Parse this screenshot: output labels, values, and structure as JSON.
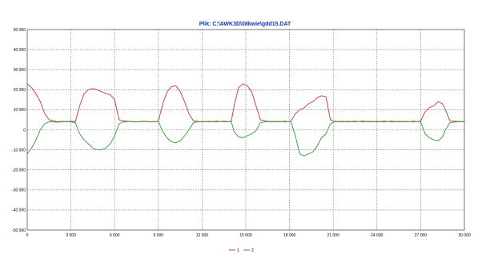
{
  "chart_data": {
    "type": "line",
    "title": "Plik: C:\\AWK3D\\08kwie\\gdd15.DAT",
    "xlabel": "",
    "ylabel": "",
    "xlim": [
      0,
      30000
    ],
    "ylim": [
      -50000,
      50000
    ],
    "x_ticks": [
      "0",
      "3 000",
      "6 000",
      "9 000",
      "12 000",
      "15 000",
      "18 000",
      "21 000",
      "24 000",
      "27 000",
      "30 000"
    ],
    "y_ticks": [
      "50 000",
      "40 000",
      "30 000",
      "20 000",
      "10 000",
      "0",
      "-10 000",
      "-20 000",
      "-30 000",
      "-40 000",
      "-50 000"
    ],
    "grid": true,
    "legend_position": "bottom-center",
    "series": [
      {
        "name": "1",
        "color": "#cc3333",
        "x": [
          0,
          300,
          600,
          900,
          1200,
          1500,
          1800,
          2100,
          2400,
          2700,
          3000,
          3300,
          3600,
          3900,
          4200,
          4500,
          4800,
          5100,
          5400,
          5700,
          6000,
          6300,
          6600,
          7000,
          7500,
          8000,
          8500,
          9000,
          9300,
          9600,
          9900,
          10200,
          10500,
          10800,
          11100,
          11400,
          11700,
          12000,
          12500,
          13000,
          13500,
          14000,
          14200,
          14500,
          14800,
          15100,
          15400,
          15700,
          16000,
          16300,
          16700,
          17200,
          17700,
          18100,
          18400,
          18700,
          19000,
          19300,
          19600,
          19900,
          20200,
          20500,
          20800,
          21100,
          21500,
          22000,
          22500,
          23000,
          23500,
          24000,
          24500,
          25000,
          25500,
          26000,
          26500,
          27000,
          27300,
          27600,
          27900,
          28200,
          28500,
          28700,
          29000,
          29500,
          30000
        ],
        "y": [
          23000,
          21000,
          18000,
          14000,
          8000,
          5000,
          4500,
          4000,
          4200,
          4000,
          4300,
          4000,
          12000,
          18000,
          20000,
          20500,
          20000,
          19000,
          18000,
          17500,
          15000,
          5000,
          4500,
          4200,
          4000,
          4200,
          4000,
          4300,
          13000,
          19000,
          21500,
          22000,
          19000,
          14000,
          8000,
          4500,
          4200,
          4000,
          4200,
          4000,
          4300,
          4000,
          12000,
          21000,
          23000,
          22000,
          19000,
          12000,
          5000,
          4500,
          4000,
          4200,
          4000,
          4300,
          8000,
          10000,
          11000,
          13000,
          14000,
          16000,
          17000,
          16500,
          5000,
          4200,
          4000,
          4200,
          4000,
          4300,
          4000,
          4200,
          4000,
          4300,
          4000,
          4200,
          4000,
          4300,
          9000,
          11000,
          12000,
          14000,
          13000,
          10000,
          4500,
          4200,
          4000
        ]
      },
      {
        "name": "2",
        "color": "#339933",
        "x": [
          0,
          300,
          600,
          900,
          1200,
          1500,
          1800,
          2100,
          2400,
          2700,
          3000,
          3300,
          3600,
          3900,
          4200,
          4500,
          4800,
          5100,
          5400,
          5700,
          6000,
          6300,
          6600,
          7000,
          7500,
          8000,
          8500,
          9000,
          9300,
          9600,
          9900,
          10200,
          10500,
          10800,
          11100,
          11400,
          11700,
          12000,
          12500,
          13000,
          13500,
          14000,
          14200,
          14500,
          14800,
          15100,
          15400,
          15700,
          16000,
          16300,
          16700,
          17200,
          17700,
          18100,
          18400,
          18700,
          19000,
          19300,
          19600,
          19900,
          20200,
          20500,
          20800,
          21100,
          21500,
          22000,
          22500,
          23000,
          23500,
          24000,
          24500,
          25000,
          25500,
          26000,
          26500,
          27000,
          27300,
          27600,
          27900,
          28200,
          28500,
          28700,
          29000,
          29500,
          30000
        ],
        "y": [
          -12000,
          -9000,
          -5000,
          0,
          3000,
          4000,
          4000,
          3800,
          4000,
          4200,
          4000,
          3500,
          -2000,
          -5000,
          -7000,
          -9000,
          -10000,
          -10000,
          -9000,
          -7000,
          -3000,
          3000,
          4000,
          4200,
          4000,
          4300,
          4000,
          4200,
          -1000,
          -4000,
          -6000,
          -6500,
          -5500,
          -3000,
          0,
          3500,
          4000,
          4200,
          4000,
          4300,
          4000,
          4200,
          -1000,
          -3500,
          -4000,
          -3000,
          -2000,
          -500,
          3500,
          4000,
          4200,
          4000,
          4300,
          4000,
          -3000,
          -12000,
          -13000,
          -12000,
          -11000,
          -8000,
          -4000,
          -2000,
          3000,
          4000,
          4200,
          4000,
          4300,
          4000,
          4200,
          4000,
          4300,
          4000,
          4200,
          4000,
          4300,
          4000,
          -2000,
          -4000,
          -5000,
          -5500,
          -3500,
          0,
          3500,
          4000,
          4200
        ]
      }
    ]
  }
}
